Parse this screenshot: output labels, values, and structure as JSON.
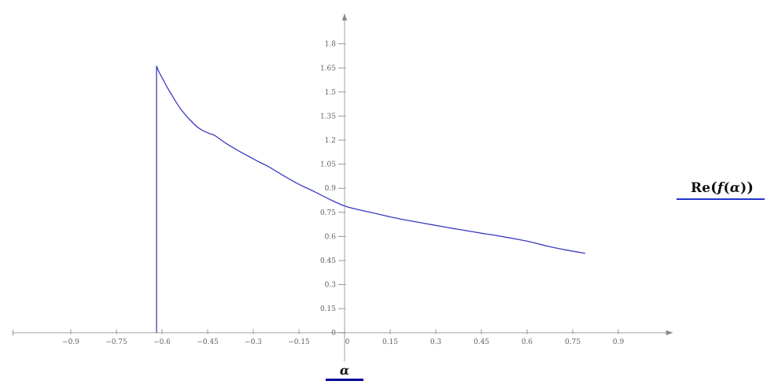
{
  "colors": {
    "curve": "#3b3bc0",
    "axis": "#a6a6a6",
    "tick": "#8f8f8f",
    "tick_label": "#5f5f5f",
    "arrow": "#8a8a8a",
    "legend_underline": "#2236cc",
    "xlabel_underline": "#000099"
  },
  "legend": {
    "parts": [
      {
        "text": "Re",
        "style": "up"
      },
      {
        "text": "(",
        "style": "paren"
      },
      {
        "text": "f",
        "style": "it"
      },
      {
        "text": "(",
        "style": "up"
      },
      {
        "text": "α",
        "style": "it"
      },
      {
        "text": ")",
        "style": "up"
      },
      {
        "text": ")",
        "style": "paren"
      }
    ]
  },
  "chart_data": {
    "type": "line",
    "title": "",
    "xlabel": "α",
    "ylabel": "",
    "legend_label": "Re(f(α))",
    "legend_position": "right",
    "grid": false,
    "xlim": [
      -1.09,
      1.08
    ],
    "ylim": [
      -0.18,
      1.99
    ],
    "x_ticks": [
      {
        "value": -0.9,
        "label": "−0.9"
      },
      {
        "value": -0.75,
        "label": "−0.75"
      },
      {
        "value": -0.6,
        "label": "−0.6"
      },
      {
        "value": -0.45,
        "label": "−0.45"
      },
      {
        "value": -0.3,
        "label": "−0.3"
      },
      {
        "value": -0.15,
        "label": "−0.15"
      },
      {
        "value": 0,
        "label": "0"
      },
      {
        "value": 0.15,
        "label": "0.15"
      },
      {
        "value": 0.3,
        "label": "0.3"
      },
      {
        "value": 0.45,
        "label": "0.45"
      },
      {
        "value": 0.6,
        "label": "0.6"
      },
      {
        "value": 0.75,
        "label": "0.75"
      },
      {
        "value": 0.9,
        "label": "0.9"
      }
    ],
    "y_ticks": [
      {
        "value": 0,
        "label": "0"
      },
      {
        "value": 0.15,
        "label": "0.15"
      },
      {
        "value": 0.3,
        "label": "0.3"
      },
      {
        "value": 0.45,
        "label": "0.45"
      },
      {
        "value": 0.6,
        "label": "0.6"
      },
      {
        "value": 0.75,
        "label": "0.75"
      },
      {
        "value": 0.9,
        "label": "0.9"
      },
      {
        "value": 1.05,
        "label": "1.05"
      },
      {
        "value": 1.2,
        "label": "1.2"
      },
      {
        "value": 1.35,
        "label": "1.35"
      },
      {
        "value": 1.5,
        "label": "1.5"
      },
      {
        "value": 1.65,
        "label": "1.65"
      },
      {
        "value": 1.8,
        "label": "1.8"
      }
    ],
    "series": [
      {
        "name": "Re(f(α))",
        "color": "#3b3bc0",
        "vertical_segment": {
          "x": -0.618,
          "from": 0.0,
          "to": 1.662
        },
        "points": [
          [
            -0.618,
            1.662
          ],
          [
            -0.612,
            1.633
          ],
          [
            -0.604,
            1.603
          ],
          [
            -0.594,
            1.568
          ],
          [
            -0.58,
            1.52
          ],
          [
            -0.562,
            1.462
          ],
          [
            -0.538,
            1.392
          ],
          [
            -0.51,
            1.33
          ],
          [
            -0.48,
            1.276
          ],
          [
            -0.45,
            1.245
          ],
          [
            -0.427,
            1.229
          ],
          [
            -0.39,
            1.18
          ],
          [
            -0.35,
            1.135
          ],
          [
            -0.318,
            1.102
          ],
          [
            -0.28,
            1.063
          ],
          [
            -0.25,
            1.035
          ],
          [
            -0.2,
            0.978
          ],
          [
            -0.15,
            0.925
          ],
          [
            -0.1,
            0.88
          ],
          [
            -0.05,
            0.832
          ],
          [
            0.0,
            0.79
          ],
          [
            0.05,
            0.765
          ],
          [
            0.1,
            0.744
          ],
          [
            0.15,
            0.722
          ],
          [
            0.2,
            0.703
          ],
          [
            0.29,
            0.672
          ],
          [
            0.35,
            0.652
          ],
          [
            0.4,
            0.636
          ],
          [
            0.45,
            0.62
          ],
          [
            0.5,
            0.605
          ],
          [
            0.574,
            0.58
          ],
          [
            0.62,
            0.562
          ],
          [
            0.67,
            0.538
          ],
          [
            0.73,
            0.515
          ],
          [
            0.791,
            0.495
          ]
        ]
      }
    ]
  }
}
